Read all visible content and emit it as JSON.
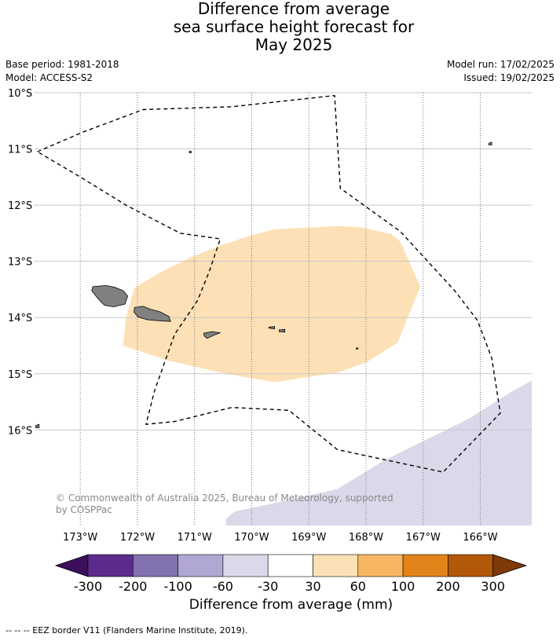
{
  "title": {
    "line1": "Difference from average",
    "line2": "sea surface height forecast for",
    "line3": "May 2025"
  },
  "meta": {
    "base_period": "Base period: 1981-2018",
    "model": "Model: ACCESS-S2",
    "model_run": "Model run: 17/02/2025",
    "issued": "Issued: 19/02/2025"
  },
  "map": {
    "extent": {
      "lon_min": -173.8,
      "lon_max": -165.1,
      "lat_min": -17.7,
      "lat_max": -10.0
    },
    "lat_labels": [
      {
        "lat": -10,
        "label": "10°S"
      },
      {
        "lat": -11,
        "label": "11°S"
      },
      {
        "lat": -12,
        "label": "12°S"
      },
      {
        "lat": -13,
        "label": "13°S"
      },
      {
        "lat": -14,
        "label": "14°S"
      },
      {
        "lat": -15,
        "label": "15°S"
      },
      {
        "lat": -16,
        "label": "16°S"
      }
    ],
    "lon_labels": [
      {
        "lon": -173,
        "label": "173°W"
      },
      {
        "lon": -172,
        "label": "172°W"
      },
      {
        "lon": -171,
        "label": "171°W"
      },
      {
        "lon": -170,
        "label": "170°W"
      },
      {
        "lon": -169,
        "label": "169°W"
      },
      {
        "lon": -168,
        "label": "168°W"
      },
      {
        "lon": -167,
        "label": "167°W"
      },
      {
        "lon": -166,
        "label": "166°W"
      }
    ],
    "regions": [
      {
        "name": "30 to 60 mm",
        "color": "#fde0b6",
        "points": [
          [
            -172.05,
            -13.47
          ],
          [
            -171.55,
            -13.17
          ],
          [
            -171.05,
            -12.92
          ],
          [
            -170.55,
            -12.72
          ],
          [
            -170.05,
            -12.55
          ],
          [
            -169.6,
            -12.43
          ],
          [
            -168.95,
            -12.4
          ],
          [
            -168.5,
            -12.37
          ],
          [
            -168.05,
            -12.4
          ],
          [
            -167.55,
            -12.52
          ],
          [
            -167.4,
            -12.65
          ],
          [
            -167.05,
            -13.45
          ],
          [
            -167.25,
            -13.95
          ],
          [
            -167.45,
            -14.45
          ],
          [
            -168.0,
            -14.8
          ],
          [
            -168.5,
            -14.98
          ],
          [
            -169.6,
            -15.15
          ],
          [
            -170.45,
            -15.0
          ],
          [
            -171.45,
            -14.77
          ],
          [
            -172.25,
            -14.5
          ],
          [
            -172.2,
            -14.0
          ]
        ]
      },
      {
        "name": "-30 to -60 mm",
        "color": "#d9d9ea",
        "points": [
          [
            -170.45,
            -17.7
          ],
          [
            -170.45,
            -17.58
          ],
          [
            -170.3,
            -17.45
          ],
          [
            -169.5,
            -17.28
          ],
          [
            -168.5,
            -17.05
          ],
          [
            -167.7,
            -16.55
          ],
          [
            -167.0,
            -16.2
          ],
          [
            -166.2,
            -15.8
          ],
          [
            -165.5,
            -15.35
          ],
          [
            -165.1,
            -15.12
          ],
          [
            -165.1,
            -17.7
          ]
        ]
      }
    ],
    "islands": [
      {
        "name": "Savai'i",
        "points": [
          [
            -172.78,
            -13.45
          ],
          [
            -172.55,
            -13.43
          ],
          [
            -172.4,
            -13.46
          ],
          [
            -172.25,
            -13.52
          ],
          [
            -172.17,
            -13.62
          ],
          [
            -172.22,
            -13.76
          ],
          [
            -172.42,
            -13.81
          ],
          [
            -172.58,
            -13.78
          ],
          [
            -172.7,
            -13.65
          ],
          [
            -172.8,
            -13.52
          ]
        ]
      },
      {
        "name": "Upolu",
        "points": [
          [
            -172.05,
            -13.82
          ],
          [
            -171.9,
            -13.8
          ],
          [
            -171.78,
            -13.85
          ],
          [
            -171.6,
            -13.9
          ],
          [
            -171.45,
            -13.98
          ],
          [
            -171.42,
            -14.07
          ],
          [
            -171.6,
            -14.06
          ],
          [
            -171.82,
            -14.04
          ],
          [
            -171.99,
            -13.99
          ],
          [
            -172.06,
            -13.9
          ]
        ]
      },
      {
        "name": "Tutuila",
        "points": [
          [
            -170.84,
            -14.28
          ],
          [
            -170.7,
            -14.25
          ],
          [
            -170.55,
            -14.27
          ],
          [
            -170.63,
            -14.3
          ],
          [
            -170.78,
            -14.37
          ],
          [
            -170.83,
            -14.33
          ]
        ]
      },
      {
        "name": "Ofu",
        "points": [
          [
            -169.7,
            -14.17
          ],
          [
            -169.6,
            -14.16
          ],
          [
            -169.6,
            -14.2
          ],
          [
            -169.7,
            -14.19
          ]
        ]
      },
      {
        "name": "Ta'u",
        "points": [
          [
            -169.52,
            -14.22
          ],
          [
            -169.42,
            -14.21
          ],
          [
            -169.42,
            -14.26
          ],
          [
            -169.52,
            -14.25
          ]
        ]
      },
      {
        "name": "Swains",
        "points": [
          [
            -171.09,
            -11.04
          ],
          [
            -171.06,
            -11.04
          ],
          [
            -171.06,
            -11.07
          ],
          [
            -171.09,
            -11.07
          ]
        ]
      },
      {
        "name": "Atafu",
        "points": [
          [
            -165.85,
            -10.9
          ],
          [
            -165.8,
            -10.88
          ],
          [
            -165.8,
            -10.93
          ],
          [
            -165.85,
            -10.93
          ]
        ]
      },
      {
        "name": "Rose",
        "points": [
          [
            -168.17,
            -14.54
          ],
          [
            -168.14,
            -14.54
          ],
          [
            -168.14,
            -14.56
          ],
          [
            -168.17,
            -14.56
          ]
        ]
      },
      {
        "name": "Niuatoputapu",
        "points": [
          [
            -173.78,
            -15.92
          ],
          [
            -173.72,
            -15.9
          ],
          [
            -173.72,
            -15.96
          ],
          [
            -173.78,
            -15.96
          ]
        ]
      }
    ],
    "eez_border": [
      [
        -173.75,
        -11.05
      ],
      [
        -172.95,
        -10.7
      ],
      [
        -171.9,
        -10.3
      ],
      [
        -170.35,
        -10.25
      ],
      [
        -168.55,
        -10.05
      ],
      [
        -168.45,
        -11.7
      ],
      [
        -167.4,
        -12.47
      ],
      [
        -166.45,
        -13.52
      ],
      [
        -166.05,
        -14.05
      ],
      [
        -165.8,
        -14.72
      ],
      [
        -165.65,
        -15.7
      ],
      [
        -166.65,
        -16.75
      ],
      [
        -168.5,
        -16.35
      ],
      [
        -169.35,
        -15.65
      ],
      [
        -170.35,
        -15.6
      ],
      [
        -171.35,
        -15.85
      ],
      [
        -171.85,
        -15.9
      ],
      [
        -171.7,
        -15.3
      ],
      [
        -171.35,
        -14.3
      ],
      [
        -170.95,
        -13.7
      ],
      [
        -170.75,
        -13.2
      ],
      [
        -170.55,
        -12.6
      ],
      [
        -171.25,
        -12.5
      ],
      [
        -172.2,
        -12.0
      ],
      [
        -173.0,
        -11.5
      ],
      [
        -173.75,
        -11.05
      ]
    ],
    "copyright": {
      "line1": "© Commonwealth of Australia 2025, Bureau of Meteorology, supported",
      "line2": "by COSPPac"
    },
    "colors": {
      "land": "#808080",
      "grid": "#c8c8c8",
      "eez": "#000000"
    }
  },
  "colorbar": {
    "label": "Difference from average (mm)",
    "colors": [
      "#3b0f5c",
      "#5c2c8c",
      "#8272ad",
      "#b0a8d2",
      "#d9d9ea",
      "#ffffff",
      "#fde0b6",
      "#f9b662",
      "#e2831a",
      "#b35708",
      "#7f3a08"
    ],
    "tick_labels": [
      "-300",
      "-200",
      "-100",
      "-60",
      "-30",
      "30",
      "60",
      "100",
      "200",
      "300"
    ]
  },
  "footnote": "--  --  -- EEZ border V11 (Flanders Marine Institute, 2019)."
}
